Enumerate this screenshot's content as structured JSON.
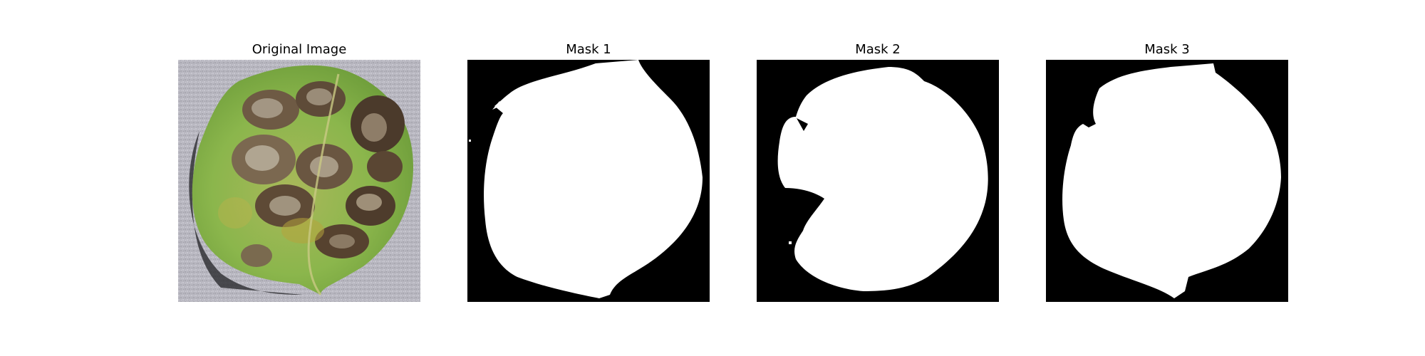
{
  "figure": {
    "panels": [
      {
        "title": "Original Image",
        "content": "leaf-photo"
      },
      {
        "title": "Mask 1",
        "content": "binary-mask"
      },
      {
        "title": "Mask 2",
        "content": "binary-mask"
      },
      {
        "title": "Mask 3",
        "content": "binary-mask"
      }
    ]
  },
  "colors": {
    "background": "#ffffff",
    "mask_foreground": "#ffffff",
    "mask_background": "#000000",
    "leaf_green": "#7fae4a",
    "lesion_brown": "#6e5a44",
    "surface_gray": "#b9b8c0"
  }
}
